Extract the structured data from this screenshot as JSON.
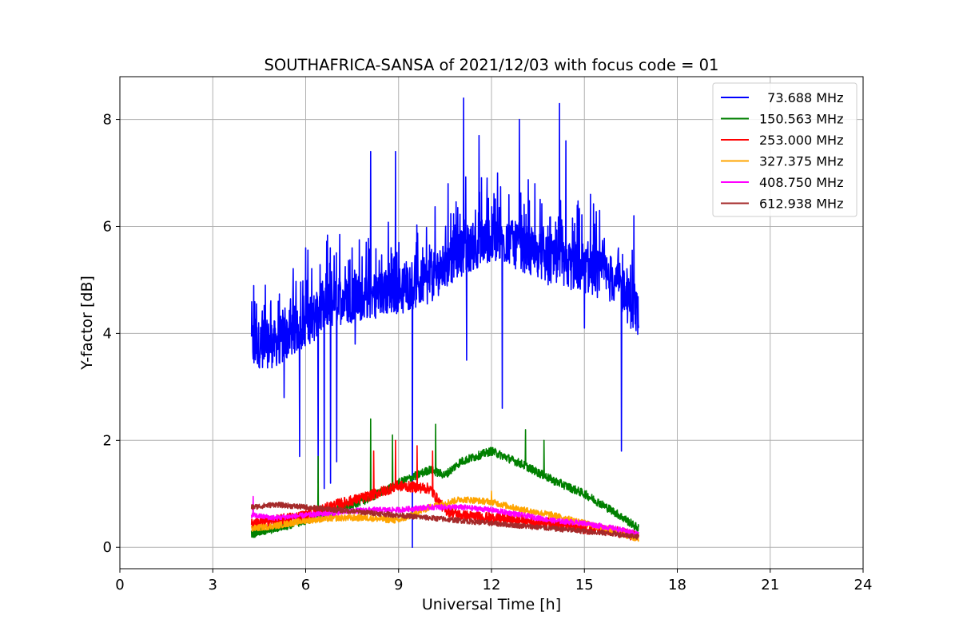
{
  "chart_data": {
    "type": "line",
    "title": "SOUTHAFRICA-SANSA of 2021/12/03 with focus code = 01",
    "xlabel": "Universal Time [h]",
    "ylabel": "Y-factor [dB]",
    "xlim": [
      0,
      24
    ],
    "ylim": [
      -0.4,
      8.8
    ],
    "xticks": [
      0,
      3,
      6,
      9,
      12,
      15,
      18,
      21,
      24
    ],
    "yticks": [
      0,
      2,
      4,
      6,
      8
    ],
    "xtick_labels": [
      "0",
      "3",
      "6",
      "9",
      "12",
      "15",
      "18",
      "21",
      "24"
    ],
    "ytick_labels": [
      "0",
      "2",
      "4",
      "6",
      "8"
    ],
    "grid": true,
    "legend_position": "top-right",
    "x_range_of_data": [
      4.25,
      16.75
    ],
    "series": [
      {
        "name": "  73.688 MHz",
        "color": "#0000ff",
        "x": [
          4.25,
          5.0,
          6.0,
          7.0,
          8.0,
          9.0,
          10.0,
          11.0,
          12.0,
          13.0,
          14.0,
          15.0,
          16.0,
          16.75
        ],
        "values": [
          3.8,
          3.8,
          4.2,
          4.6,
          4.7,
          4.8,
          5.0,
          5.5,
          5.8,
          5.6,
          5.3,
          5.2,
          5.0,
          4.3
        ],
        "spikes": [
          [
            5.8,
            5.9
          ],
          [
            7.5,
            5.6
          ],
          [
            8.1,
            7.4
          ],
          [
            8.9,
            7.4
          ],
          [
            11.1,
            8.4
          ],
          [
            11.6,
            7.7
          ],
          [
            12.9,
            8.0
          ],
          [
            14.2,
            8.3
          ],
          [
            14.4,
            7.6
          ],
          [
            4.7,
            4.9
          ],
          [
            6.0,
            5.6
          ],
          [
            7.0,
            5.0
          ],
          [
            10.6,
            6.8
          ],
          [
            12.2,
            7.0
          ],
          [
            13.4,
            6.8
          ],
          [
            15.2,
            6.6
          ],
          [
            16.6,
            6.2
          ]
        ],
        "dips": [
          [
            5.3,
            2.8
          ],
          [
            5.8,
            1.7
          ],
          [
            6.4,
            1.2
          ],
          [
            6.6,
            1.1
          ],
          [
            6.8,
            1.2
          ],
          [
            7.0,
            1.6
          ],
          [
            7.6,
            3.8
          ],
          [
            9.45,
            0.0
          ],
          [
            11.2,
            3.5
          ],
          [
            12.35,
            2.6
          ],
          [
            16.2,
            1.8
          ],
          [
            15.0,
            4.1
          ]
        ],
        "noise": 0.45
      },
      {
        "name": "150.563 MHz",
        "color": "#008000",
        "x": [
          4.25,
          5.0,
          6.0,
          7.0,
          8.0,
          9.0,
          10.0,
          10.5,
          11.0,
          12.0,
          13.0,
          14.0,
          15.0,
          16.0,
          16.75
        ],
        "values": [
          0.25,
          0.35,
          0.5,
          0.7,
          0.9,
          1.2,
          1.45,
          1.35,
          1.6,
          1.8,
          1.55,
          1.25,
          1.0,
          0.65,
          0.35
        ],
        "spikes": [
          [
            8.1,
            2.4
          ],
          [
            8.8,
            2.1
          ],
          [
            10.2,
            2.3
          ],
          [
            13.1,
            2.2
          ],
          [
            13.7,
            2.0
          ],
          [
            6.4,
            1.7
          ]
        ],
        "dips": [],
        "noise": 0.08
      },
      {
        "name": "253.000 MHz",
        "color": "#ff0000",
        "x": [
          4.25,
          5.0,
          6.0,
          7.0,
          8.0,
          9.0,
          10.0,
          10.5,
          11.0,
          12.0,
          13.0,
          14.0,
          15.0,
          16.0,
          16.75
        ],
        "values": [
          0.45,
          0.5,
          0.6,
          0.8,
          0.95,
          1.15,
          1.1,
          0.7,
          0.6,
          0.55,
          0.5,
          0.45,
          0.35,
          0.3,
          0.2
        ],
        "spikes": [
          [
            8.2,
            1.8
          ],
          [
            8.9,
            2.0
          ],
          [
            9.6,
            1.9
          ],
          [
            10.1,
            1.8
          ]
        ],
        "dips": [],
        "noise": 0.1
      },
      {
        "name": "327.375 MHz",
        "color": "#ffa500",
        "x": [
          4.25,
          5.0,
          6.0,
          7.0,
          8.0,
          9.0,
          10.0,
          11.0,
          12.0,
          13.0,
          14.0,
          15.0,
          16.0,
          16.75
        ],
        "values": [
          0.35,
          0.4,
          0.5,
          0.55,
          0.55,
          0.5,
          0.75,
          0.9,
          0.85,
          0.7,
          0.6,
          0.45,
          0.3,
          0.15
        ],
        "spikes": [
          [
            12.0,
            1.05
          ]
        ],
        "dips": [],
        "noise": 0.06
      },
      {
        "name": "408.750 MHz",
        "color": "#ff00ff",
        "x": [
          4.25,
          5.0,
          6.0,
          7.0,
          8.0,
          9.0,
          10.0,
          11.0,
          12.0,
          13.0,
          14.0,
          15.0,
          16.0,
          16.75
        ],
        "values": [
          0.6,
          0.55,
          0.6,
          0.65,
          0.7,
          0.7,
          0.75,
          0.75,
          0.7,
          0.6,
          0.5,
          0.45,
          0.35,
          0.25
        ],
        "spikes": [
          [
            4.3,
            0.95
          ]
        ],
        "dips": [],
        "noise": 0.05
      },
      {
        "name": "612.938 MHz",
        "color": "#a52a2a",
        "x": [
          4.25,
          5.0,
          6.0,
          7.0,
          8.0,
          9.0,
          10.0,
          11.0,
          12.0,
          13.0,
          14.0,
          15.0,
          16.0,
          16.75
        ],
        "values": [
          0.75,
          0.8,
          0.75,
          0.7,
          0.65,
          0.6,
          0.55,
          0.5,
          0.45,
          0.4,
          0.35,
          0.3,
          0.25,
          0.2
        ],
        "spikes": [],
        "dips": [],
        "noise": 0.05
      }
    ]
  }
}
